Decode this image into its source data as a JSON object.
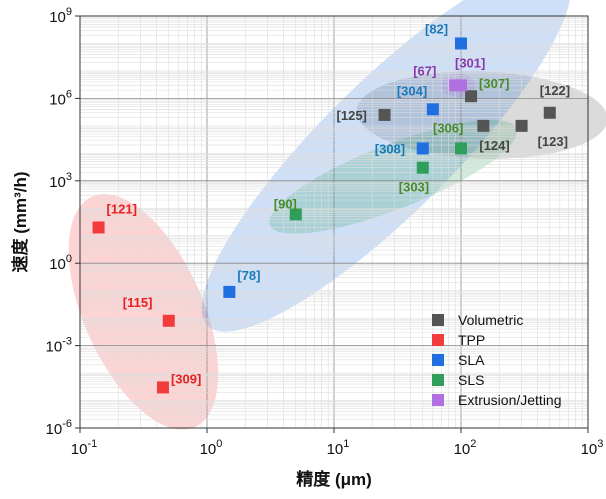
{
  "chart_data": {
    "type": "scatter",
    "xlabel": "精度 (μm)",
    "ylabel": "速度 (mm³/h)",
    "xscale": "log",
    "yscale": "log",
    "xlim": [
      0.1,
      1000
    ],
    "ylim": [
      1e-06,
      1000000000
    ],
    "grid": true,
    "legend_position": "bottom-right",
    "x_ticks": [
      {
        "value": 0.1,
        "base": "10",
        "exp": "-1"
      },
      {
        "value": 1,
        "base": "10",
        "exp": "0"
      },
      {
        "value": 10,
        "base": "10",
        "exp": "1"
      },
      {
        "value": 100,
        "base": "10",
        "exp": "2"
      },
      {
        "value": 1000,
        "base": "10",
        "exp": "3"
      }
    ],
    "y_ticks": [
      {
        "value": 1e-06,
        "base": "10",
        "exp": "-6"
      },
      {
        "value": 0.001,
        "base": "10",
        "exp": "-3"
      },
      {
        "value": 1,
        "base": "10",
        "exp": "0"
      },
      {
        "value": 1000,
        "base": "10",
        "exp": "3"
      },
      {
        "value": 1000000,
        "base": "10",
        "exp": "6"
      },
      {
        "value": 1000000000,
        "base": "10",
        "exp": "9"
      }
    ],
    "series": [
      {
        "name": "Volumetric",
        "color": "#555555",
        "points": [
          {
            "x": 25,
            "y": 250000,
            "label": "[125]"
          },
          {
            "x": 150,
            "y": 100000,
            "label": "[124]"
          },
          {
            "x": 300,
            "y": 100000,
            "label": "[123]"
          },
          {
            "x": 500,
            "y": 300000,
            "label": "[122]"
          },
          {
            "x": 120,
            "y": 1200000,
            "label": ""
          }
        ]
      },
      {
        "name": "TPP",
        "color": "#f23b3b",
        "points": [
          {
            "x": 0.14,
            "y": 20,
            "label": "[121]"
          },
          {
            "x": 0.5,
            "y": 0.008,
            "label": "[115]"
          },
          {
            "x": 0.45,
            "y": 3e-05,
            "label": "[309]"
          }
        ]
      },
      {
        "name": "SLA",
        "color": "#1f6fe0",
        "points": [
          {
            "x": 100,
            "y": 100000000,
            "label": "[82]"
          },
          {
            "x": 60,
            "y": 400000,
            "label": "[304]"
          },
          {
            "x": 50,
            "y": 15000,
            "label": "[308]"
          },
          {
            "x": 1.5,
            "y": 0.09,
            "label": "[78]"
          }
        ]
      },
      {
        "name": "SLS",
        "color": "#2e9e5a",
        "points": [
          {
            "x": 100,
            "y": 15000,
            "label": "[306]"
          },
          {
            "x": 50,
            "y": 3000,
            "label": "[303]"
          },
          {
            "x": 5,
            "y": 60,
            "label": "[90]"
          }
        ]
      },
      {
        "name": "Extrusion/Jetting",
        "color": "#b070e0",
        "points": [
          {
            "x": 90,
            "y": 3000000,
            "label": "[67]"
          },
          {
            "x": 100,
            "y": 3000000,
            "label": "[301]"
          }
        ]
      }
    ],
    "extra_labels": [
      {
        "text": "[307]",
        "color": "#4b8a2a",
        "x": 120,
        "y": 2000000
      }
    ]
  }
}
